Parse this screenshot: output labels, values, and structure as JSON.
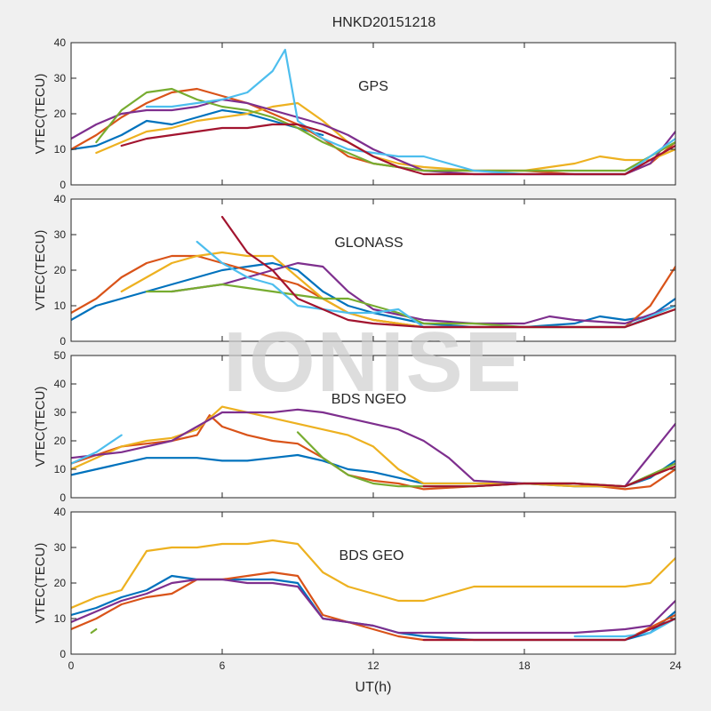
{
  "figure": {
    "title": "HNKD20151218",
    "xlabel": "UT(h)",
    "watermark": "IONISE"
  },
  "colors": [
    "#0072BD",
    "#D95319",
    "#EDB120",
    "#7E2F8E",
    "#77AC30",
    "#4DBEEE",
    "#A2142F"
  ],
  "chart_data": [
    {
      "type": "line",
      "label": "GPS",
      "ylabel": "VTEC(TECU)",
      "xlim": [
        0,
        24
      ],
      "ylim": [
        0,
        40
      ],
      "xticks": [
        0,
        6,
        12,
        18,
        24
      ],
      "yticks": [
        0,
        10,
        20,
        30,
        40
      ],
      "series": [
        {
          "color": "#0072BD",
          "x": [
            0,
            1,
            2,
            3,
            4,
            5,
            6,
            7,
            8,
            9,
            10
          ],
          "y": [
            10,
            11,
            14,
            18,
            17,
            19,
            21,
            20,
            18,
            16,
            14
          ]
        },
        {
          "color": "#D95319",
          "x": [
            0,
            1,
            2,
            3,
            4,
            5,
            6,
            7,
            8,
            9,
            10,
            11,
            12,
            13,
            14,
            16,
            18,
            20,
            22,
            23,
            24
          ],
          "y": [
            10,
            14,
            19,
            23,
            26,
            27,
            25,
            23,
            20,
            17,
            13,
            8,
            6,
            5,
            4,
            4,
            4,
            3,
            3,
            6,
            12
          ]
        },
        {
          "color": "#EDB120",
          "x": [
            1,
            2,
            3,
            4,
            5,
            6,
            7,
            8,
            9,
            10,
            11,
            12,
            13,
            14,
            16,
            18,
            20,
            21,
            22,
            23,
            24
          ],
          "y": [
            9,
            12,
            15,
            16,
            18,
            19,
            20,
            22,
            23,
            18,
            12,
            8,
            6,
            5,
            4,
            4,
            6,
            8,
            7,
            7,
            10
          ]
        },
        {
          "color": "#7E2F8E",
          "x": [
            0,
            1,
            2,
            3,
            4,
            5,
            6,
            7,
            8,
            9,
            10,
            11,
            12,
            13,
            14,
            16,
            18,
            20,
            22,
            23,
            24
          ],
          "y": [
            13,
            17,
            20,
            21,
            21,
            22,
            24,
            23,
            21,
            19,
            17,
            14,
            10,
            7,
            4,
            3,
            3,
            3,
            3,
            6,
            15
          ]
        },
        {
          "color": "#77AC30",
          "x": [
            1,
            2,
            3,
            4,
            5,
            6,
            7,
            8,
            9,
            10,
            11,
            12,
            13,
            14,
            16,
            18,
            20,
            22,
            24
          ],
          "y": [
            12,
            21,
            26,
            27,
            24,
            22,
            21,
            19,
            16,
            12,
            9,
            6,
            5,
            4,
            4,
            4,
            4,
            4,
            12
          ]
        },
        {
          "color": "#4DBEEE",
          "x": [
            3,
            4,
            5,
            6,
            7,
            8,
            8.5,
            9,
            10,
            11,
            12,
            13,
            14,
            16,
            18,
            20,
            22,
            24
          ],
          "y": [
            22,
            22,
            23,
            24,
            26,
            32,
            38,
            18,
            13,
            10,
            9,
            8,
            8,
            4,
            3,
            3,
            3,
            13
          ]
        },
        {
          "color": "#A2142F",
          "x": [
            2,
            3,
            4,
            5,
            6,
            7,
            8,
            9,
            10,
            11,
            12,
            13,
            14,
            16,
            18,
            20,
            22,
            24
          ],
          "y": [
            11,
            13,
            14,
            15,
            16,
            16,
            17,
            17,
            15,
            12,
            8,
            5,
            3,
            3,
            3,
            3,
            3,
            11
          ]
        }
      ]
    },
    {
      "type": "line",
      "label": "GLONASS",
      "ylabel": "VTEC(TECU)",
      "xlim": [
        0,
        24
      ],
      "ylim": [
        0,
        40
      ],
      "xticks": [
        0,
        6,
        12,
        18,
        24
      ],
      "yticks": [
        0,
        10,
        20,
        30,
        40
      ],
      "series": [
        {
          "color": "#0072BD",
          "x": [
            0,
            1,
            2,
            3,
            4,
            5,
            6,
            7,
            8,
            9,
            10,
            11,
            12,
            14,
            16,
            18,
            20,
            21,
            22,
            23,
            24
          ],
          "y": [
            6,
            10,
            12,
            14,
            16,
            18,
            20,
            21,
            22,
            20,
            14,
            10,
            8,
            5,
            4,
            4,
            5,
            7,
            6,
            7,
            12
          ]
        },
        {
          "color": "#D95319",
          "x": [
            0,
            1,
            2,
            3,
            4,
            5,
            6,
            7,
            8,
            9,
            10,
            11,
            12,
            14,
            16,
            18,
            20,
            22,
            23,
            24
          ],
          "y": [
            8,
            12,
            18,
            22,
            24,
            24,
            22,
            20,
            18,
            16,
            12,
            8,
            6,
            4,
            4,
            4,
            4,
            4,
            10,
            21
          ]
        },
        {
          "color": "#EDB120",
          "x": [
            2,
            3,
            4,
            5,
            6,
            7,
            8,
            9,
            10,
            11,
            12,
            13,
            14,
            16,
            18,
            20,
            22,
            24
          ],
          "y": [
            14,
            18,
            22,
            24,
            25,
            24,
            24,
            18,
            12,
            8,
            6,
            5,
            4,
            4,
            4,
            4,
            4,
            10
          ]
        },
        {
          "color": "#7E2F8E",
          "x": [
            4,
            5,
            6,
            7,
            8,
            9,
            10,
            11,
            12,
            14,
            16,
            18,
            19,
            20,
            22,
            24
          ],
          "y": [
            14,
            15,
            16,
            18,
            20,
            22,
            21,
            14,
            9,
            6,
            5,
            5,
            7,
            6,
            5,
            10
          ]
        },
        {
          "color": "#77AC30",
          "x": [
            3,
            4,
            5,
            6,
            7,
            8,
            9,
            10,
            11,
            12,
            13,
            14,
            16,
            18,
            20,
            22,
            24
          ],
          "y": [
            14,
            14,
            15,
            16,
            15,
            14,
            13,
            12,
            12,
            10,
            8,
            5,
            5,
            4,
            4,
            4,
            9
          ]
        },
        {
          "color": "#4DBEEE",
          "x": [
            5,
            6,
            7,
            8,
            9,
            10,
            11,
            12,
            13,
            14,
            16,
            18,
            20,
            22,
            24
          ],
          "y": [
            28,
            22,
            18,
            16,
            10,
            9,
            8,
            8,
            9,
            4,
            4,
            4,
            4,
            4,
            10
          ]
        },
        {
          "color": "#A2142F",
          "x": [
            6,
            7,
            8,
            9,
            10,
            11,
            12,
            14,
            16,
            18,
            20,
            22,
            24
          ],
          "y": [
            35,
            25,
            20,
            12,
            9,
            6,
            5,
            4,
            4,
            4,
            4,
            4,
            9
          ]
        }
      ]
    },
    {
      "type": "line",
      "label": "BDS NGEO",
      "ylabel": "VTEC(TECU)",
      "xlim": [
        0,
        24
      ],
      "ylim": [
        0,
        50
      ],
      "xticks": [
        0,
        6,
        12,
        18,
        24
      ],
      "yticks": [
        0,
        10,
        20,
        30,
        40,
        50
      ],
      "series": [
        {
          "color": "#0072BD",
          "x": [
            0,
            1,
            2,
            3,
            4,
            5,
            6,
            7,
            8,
            9,
            10,
            11,
            12,
            13,
            14,
            16,
            18,
            20,
            22,
            23,
            24
          ],
          "y": [
            8,
            10,
            12,
            14,
            14,
            14,
            13,
            13,
            14,
            15,
            13,
            10,
            9,
            7,
            5,
            5,
            5,
            4,
            4,
            7,
            13
          ]
        },
        {
          "color": "#D95319",
          "x": [
            0,
            1,
            2,
            3,
            4,
            5,
            5.5,
            6,
            7,
            8,
            9,
            10,
            11,
            12,
            13,
            14,
            16,
            18,
            20,
            22,
            23,
            24
          ],
          "y": [
            12,
            15,
            18,
            19,
            20,
            22,
            29,
            25,
            22,
            20,
            19,
            14,
            8,
            6,
            5,
            3,
            4,
            5,
            5,
            3,
            4,
            10
          ]
        },
        {
          "color": "#EDB120",
          "x": [
            0,
            1,
            2,
            3,
            4,
            5,
            5.5,
            6,
            7,
            8,
            9,
            10,
            11,
            12,
            13,
            14,
            16,
            18,
            20,
            22,
            24
          ],
          "y": [
            10,
            14,
            18,
            20,
            21,
            24,
            28,
            32,
            30,
            28,
            26,
            24,
            22,
            18,
            10,
            5,
            5,
            5,
            4,
            4,
            11
          ]
        },
        {
          "color": "#7E2F8E",
          "x": [
            0,
            1,
            2,
            3,
            4,
            5,
            6,
            7,
            8,
            9,
            10,
            11,
            12,
            13,
            14,
            15,
            16,
            18,
            20,
            22,
            23,
            24
          ],
          "y": [
            14,
            15,
            16,
            18,
            20,
            25,
            30,
            30,
            30,
            31,
            30,
            28,
            26,
            24,
            20,
            14,
            6,
            5,
            5,
            4,
            15,
            26
          ]
        },
        {
          "color": "#77AC30",
          "x": [
            9,
            10,
            11,
            12,
            13,
            14,
            16,
            18,
            20,
            22,
            24
          ],
          "y": [
            23,
            14,
            8,
            5,
            4,
            4,
            4,
            5,
            5,
            4,
            12
          ]
        },
        {
          "color": "#4DBEEE",
          "x": [
            0,
            1,
            2
          ],
          "y": [
            12,
            16,
            22
          ]
        },
        {
          "color": "#A2142F",
          "x": [
            14,
            16,
            18,
            20,
            22,
            24
          ],
          "y": [
            4,
            4,
            5,
            5,
            4,
            11
          ]
        }
      ]
    },
    {
      "type": "line",
      "label": "BDS GEO",
      "ylabel": "VTEC(TECU)",
      "xlim": [
        0,
        24
      ],
      "ylim": [
        0,
        40
      ],
      "xticks": [
        0,
        6,
        12,
        18,
        24
      ],
      "yticks": [
        0,
        10,
        20,
        30,
        40
      ],
      "series": [
        {
          "color": "#0072BD",
          "x": [
            0,
            1,
            2,
            3,
            4,
            5,
            6,
            7,
            8,
            9,
            10,
            11,
            12,
            13,
            14,
            16,
            18,
            20,
            22,
            23,
            24
          ],
          "y": [
            11,
            13,
            16,
            18,
            22,
            21,
            21,
            21,
            21,
            20,
            10,
            9,
            8,
            6,
            5,
            4,
            4,
            4,
            4,
            6,
            12
          ]
        },
        {
          "color": "#D95319",
          "x": [
            0,
            1,
            2,
            3,
            4,
            5,
            6,
            7,
            8,
            9,
            10,
            11,
            12,
            13,
            14,
            16,
            18,
            20,
            22,
            24
          ],
          "y": [
            7,
            10,
            14,
            16,
            17,
            21,
            21,
            22,
            23,
            22,
            11,
            9,
            7,
            5,
            4,
            4,
            4,
            4,
            4,
            11
          ]
        },
        {
          "color": "#EDB120",
          "x": [
            0,
            1,
            2,
            3,
            4,
            5,
            6,
            7,
            8,
            9,
            10,
            11,
            12,
            13,
            14,
            16,
            18,
            20,
            22,
            23,
            24
          ],
          "y": [
            13,
            16,
            18,
            29,
            30,
            30,
            31,
            31,
            32,
            31,
            23,
            19,
            17,
            15,
            15,
            19,
            19,
            19,
            19,
            20,
            27
          ]
        },
        {
          "color": "#7E2F8E",
          "x": [
            0,
            1,
            2,
            3,
            4,
            5,
            6,
            7,
            8,
            9,
            10,
            11,
            12,
            13,
            14,
            16,
            18,
            20,
            22,
            23,
            24
          ],
          "y": [
            9,
            12,
            15,
            17,
            20,
            21,
            21,
            20,
            20,
            19,
            10,
            9,
            8,
            6,
            6,
            6,
            6,
            6,
            7,
            8,
            15
          ]
        },
        {
          "color": "#77AC30",
          "x": [
            0.8,
            1
          ],
          "y": [
            6,
            7
          ]
        },
        {
          "color": "#4DBEEE",
          "x": [
            20,
            21,
            22,
            23,
            24
          ],
          "y": [
            5,
            5,
            5,
            6,
            10
          ]
        },
        {
          "color": "#A2142F",
          "x": [
            14,
            16,
            18,
            20,
            22,
            24
          ],
          "y": [
            4,
            4,
            4,
            4,
            4,
            10
          ]
        }
      ]
    }
  ]
}
